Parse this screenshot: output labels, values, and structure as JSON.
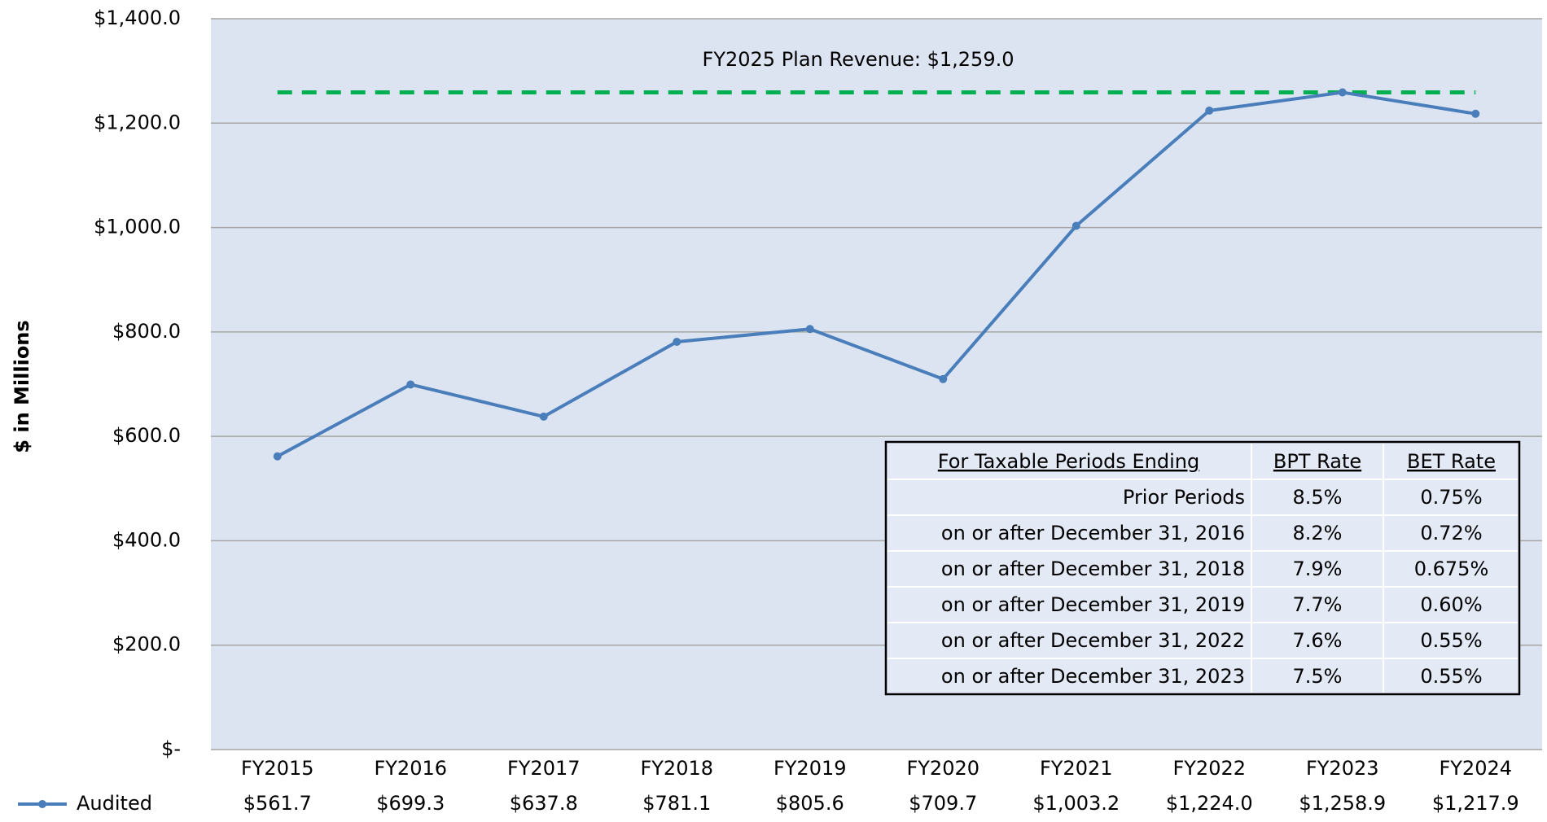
{
  "chart_data": {
    "type": "line",
    "ylabel": "$ in Millions",
    "categories": [
      "FY2015",
      "FY2016",
      "FY2017",
      "FY2018",
      "FY2019",
      "FY2020",
      "FY2021",
      "FY2022",
      "FY2023",
      "FY2024"
    ],
    "series": [
      {
        "name": "Audited",
        "color": "#4a7ebb",
        "values": [
          561.7,
          699.3,
          637.8,
          781.1,
          805.6,
          709.7,
          1003.2,
          1224.0,
          1258.9,
          1217.9
        ],
        "value_labels": [
          "$561.7",
          "$699.3",
          "$637.8",
          "$781.1",
          "$805.6",
          "$709.7",
          "$1,003.2",
          "$1,224.0",
          "$1,258.9",
          "$1,217.9"
        ]
      }
    ],
    "ylim": [
      0,
      1400
    ],
    "yticks": [
      {
        "value": 0,
        "label": "$-"
      },
      {
        "value": 200,
        "label": "$200.0"
      },
      {
        "value": 400,
        "label": "$400.0"
      },
      {
        "value": 600,
        "label": "$600.0"
      },
      {
        "value": 800,
        "label": "$800.0"
      },
      {
        "value": 1000,
        "label": "$1,000.0"
      },
      {
        "value": 1200,
        "label": "$1,200.0"
      },
      {
        "value": 1400,
        "label": "$1,400.0"
      }
    ],
    "grid": true,
    "reference_line": {
      "value": 1259.0,
      "label": "FY2025 Plan Revenue: $1,259.0",
      "color": "#00b050"
    }
  },
  "table": {
    "header": [
      "For Taxable Periods Ending",
      "BPT Rate",
      "BET Rate"
    ],
    "rows": [
      [
        "Prior Periods",
        "8.5%",
        "0.75%"
      ],
      [
        "on or after December 31, 2016",
        "8.2%",
        "0.72%"
      ],
      [
        "on or after December 31, 2018",
        "7.9%",
        "0.675%"
      ],
      [
        "on or after December 31, 2019",
        "7.7%",
        "0.60%"
      ],
      [
        "on or after December 31, 2022",
        "7.6%",
        "0.55%"
      ],
      [
        "on or after December 31, 2023",
        "7.5%",
        "0.55%"
      ]
    ]
  }
}
